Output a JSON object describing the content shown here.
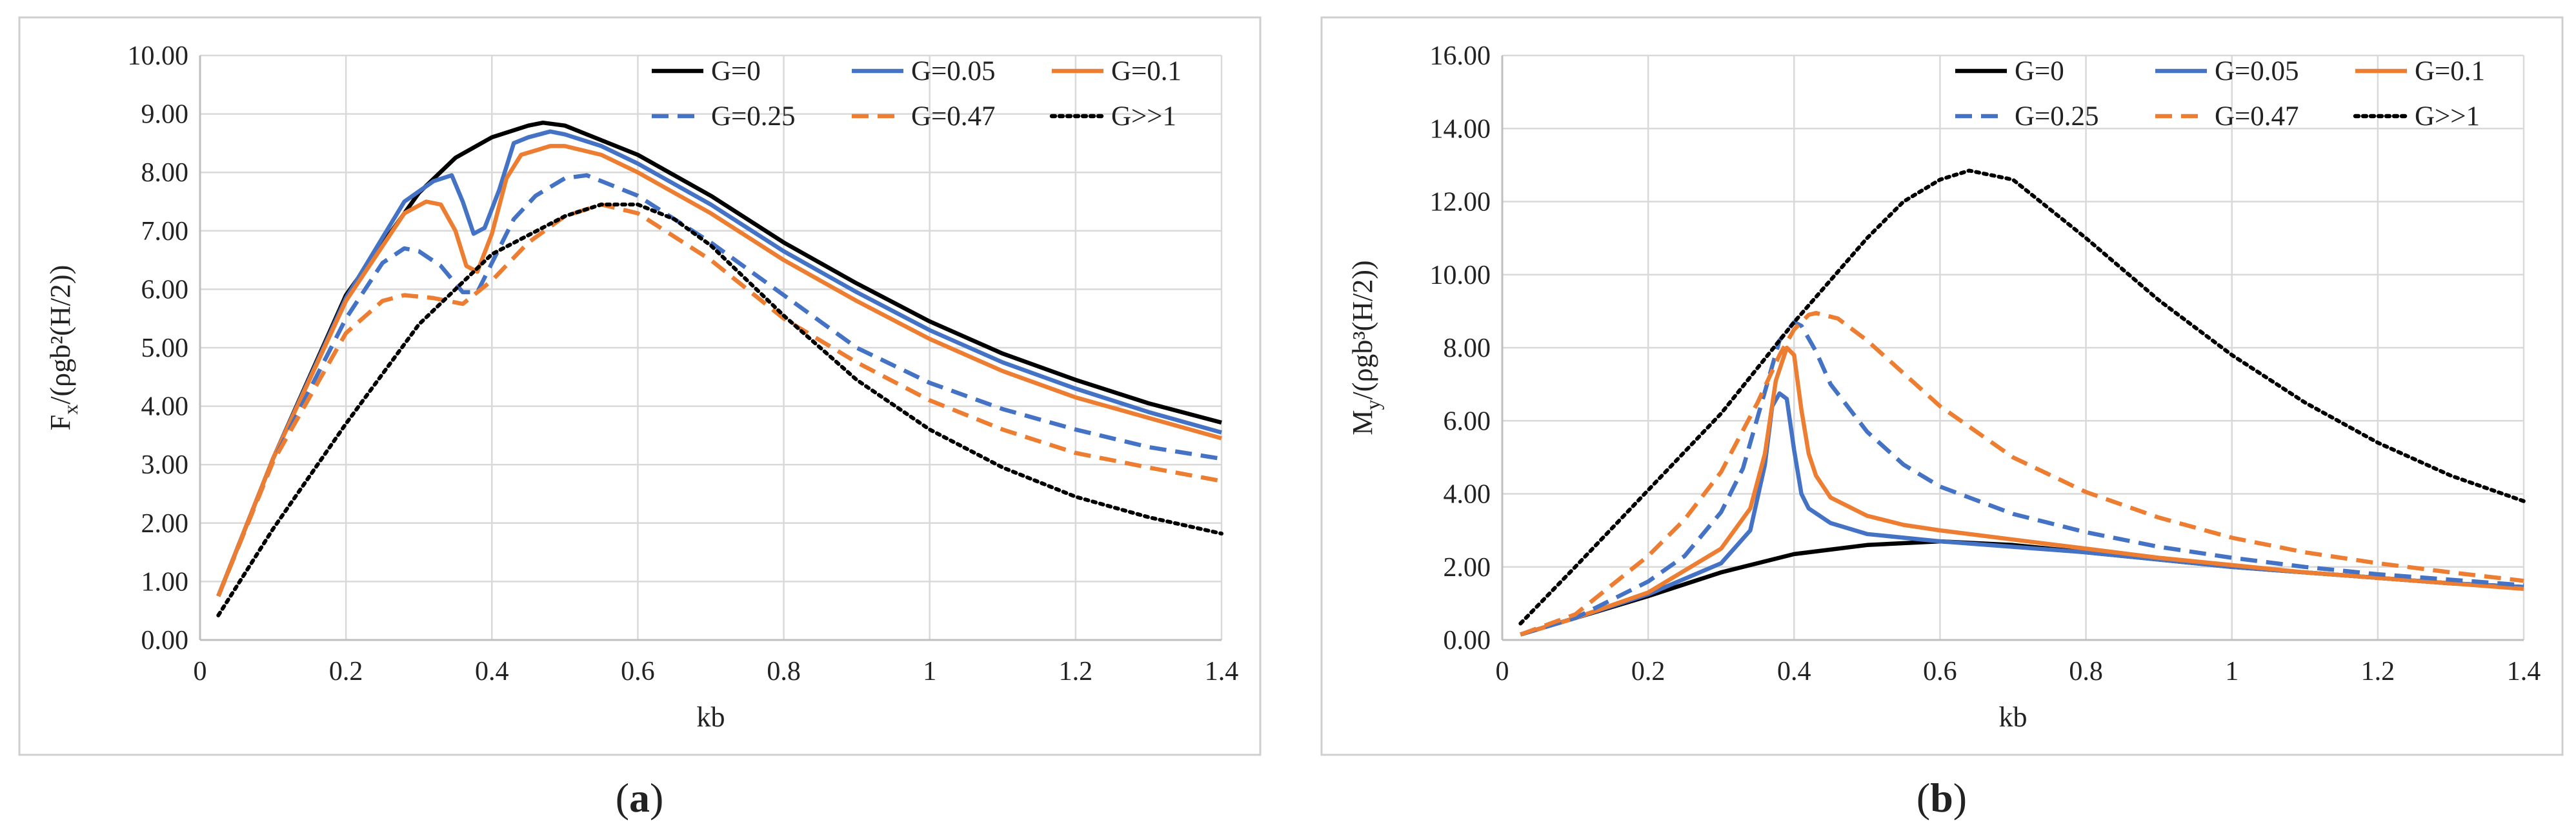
{
  "figure": {
    "panels": [
      {
        "caption_open": "(",
        "caption_letter": "a",
        "caption_close": ")"
      },
      {
        "caption_open": "(",
        "caption_letter": "b",
        "caption_close": ")"
      }
    ]
  },
  "chart_data": [
    {
      "type": "line",
      "title": "",
      "xlabel": "kb",
      "ylabel_parts": [
        "F",
        "x",
        "/(ρgb²(H/2))"
      ],
      "xlim": [
        0,
        1.4
      ],
      "ylim": [
        0,
        10
      ],
      "xticks": [
        0,
        0.2,
        0.4,
        0.6,
        0.8,
        1,
        1.2,
        1.4
      ],
      "xtick_labels": [
        "0",
        "0.2",
        "0.4",
        "0.6",
        "0.8",
        "1",
        "1.2",
        "1.4"
      ],
      "yticks": [
        0,
        1,
        2,
        3,
        4,
        5,
        6,
        7,
        8,
        9,
        10
      ],
      "ytick_labels": [
        "0.00",
        "1.00",
        "2.00",
        "3.00",
        "4.00",
        "5.00",
        "6.00",
        "7.00",
        "8.00",
        "9.00",
        "10.00"
      ],
      "grid": true,
      "legend_position": "top-right",
      "series": [
        {
          "name": "G=0",
          "color": "#000000",
          "dash": "solid",
          "x": [
            0.025,
            0.1,
            0.2,
            0.3,
            0.35,
            0.4,
            0.45,
            0.47,
            0.5,
            0.6,
            0.7,
            0.8,
            0.9,
            1.0,
            1.1,
            1.2,
            1.3,
            1.4
          ],
          "y": [
            0.75,
            3.1,
            5.9,
            7.65,
            8.25,
            8.6,
            8.8,
            8.85,
            8.8,
            8.3,
            7.6,
            6.8,
            6.1,
            5.45,
            4.9,
            4.45,
            4.05,
            3.72
          ]
        },
        {
          "name": "G=0.05",
          "color": "#4472C4",
          "dash": "solid",
          "x": [
            0.025,
            0.1,
            0.2,
            0.28,
            0.32,
            0.345,
            0.36,
            0.375,
            0.39,
            0.41,
            0.43,
            0.45,
            0.48,
            0.5,
            0.55,
            0.6,
            0.7,
            0.8,
            0.9,
            1.0,
            1.1,
            1.2,
            1.3,
            1.4
          ],
          "y": [
            0.75,
            3.1,
            5.85,
            7.5,
            7.85,
            7.95,
            7.5,
            6.95,
            7.05,
            7.7,
            8.5,
            8.6,
            8.7,
            8.65,
            8.45,
            8.15,
            7.45,
            6.65,
            5.95,
            5.3,
            4.75,
            4.3,
            3.9,
            3.55
          ]
        },
        {
          "name": "G=0.1",
          "color": "#ED7D31",
          "dash": "solid",
          "x": [
            0.025,
            0.1,
            0.2,
            0.28,
            0.31,
            0.33,
            0.35,
            0.365,
            0.38,
            0.4,
            0.42,
            0.44,
            0.48,
            0.5,
            0.55,
            0.6,
            0.7,
            0.8,
            0.9,
            1.0,
            1.1,
            1.2,
            1.3,
            1.4
          ],
          "y": [
            0.75,
            3.1,
            5.8,
            7.3,
            7.5,
            7.45,
            7.0,
            6.4,
            6.3,
            6.95,
            7.9,
            8.3,
            8.45,
            8.45,
            8.3,
            8.0,
            7.3,
            6.5,
            5.8,
            5.15,
            4.6,
            4.15,
            3.8,
            3.45
          ]
        },
        {
          "name": "G=0.25",
          "color": "#4472C4",
          "dash": "dashed",
          "x": [
            0.025,
            0.1,
            0.2,
            0.25,
            0.28,
            0.3,
            0.33,
            0.36,
            0.38,
            0.4,
            0.43,
            0.46,
            0.5,
            0.53,
            0.6,
            0.7,
            0.8,
            0.9,
            1.0,
            1.1,
            1.2,
            1.3,
            1.4
          ],
          "y": [
            0.75,
            3.05,
            5.5,
            6.45,
            6.7,
            6.65,
            6.4,
            5.95,
            5.95,
            6.45,
            7.2,
            7.6,
            7.9,
            7.95,
            7.6,
            6.8,
            5.9,
            5.0,
            4.4,
            3.95,
            3.6,
            3.3,
            3.1
          ]
        },
        {
          "name": "G=0.47",
          "color": "#ED7D31",
          "dash": "dashed",
          "x": [
            0.025,
            0.1,
            0.2,
            0.25,
            0.28,
            0.32,
            0.36,
            0.4,
            0.45,
            0.5,
            0.55,
            0.6,
            0.7,
            0.8,
            0.9,
            1.0,
            1.1,
            1.2,
            1.3,
            1.4
          ],
          "y": [
            0.75,
            3.05,
            5.25,
            5.8,
            5.9,
            5.85,
            5.75,
            6.15,
            6.8,
            7.25,
            7.45,
            7.3,
            6.5,
            5.5,
            4.75,
            4.1,
            3.6,
            3.2,
            2.95,
            2.72
          ]
        },
        {
          "name": "G>>1",
          "color": "#000000",
          "dash": "dotted",
          "x": [
            0.025,
            0.1,
            0.2,
            0.3,
            0.4,
            0.5,
            0.55,
            0.6,
            0.65,
            0.7,
            0.8,
            0.9,
            1.0,
            1.1,
            1.2,
            1.3,
            1.4
          ],
          "y": [
            0.42,
            1.9,
            3.7,
            5.4,
            6.6,
            7.25,
            7.45,
            7.45,
            7.2,
            6.75,
            5.55,
            4.45,
            3.6,
            2.95,
            2.45,
            2.1,
            1.82
          ]
        }
      ]
    },
    {
      "type": "line",
      "title": "",
      "xlabel": "kb",
      "ylabel_parts": [
        "M",
        "y",
        "/(ρgb³(H/2))"
      ],
      "xlim": [
        0,
        1.4
      ],
      "ylim": [
        0,
        16
      ],
      "xticks": [
        0,
        0.2,
        0.4,
        0.6,
        0.8,
        1,
        1.2,
        1.4
      ],
      "xtick_labels": [
        "0",
        "0.2",
        "0.4",
        "0.6",
        "0.8",
        "1",
        "1.2",
        "1.4"
      ],
      "yticks": [
        0,
        2,
        4,
        6,
        8,
        10,
        12,
        14,
        16
      ],
      "ytick_labels": [
        "0.00",
        "2.00",
        "4.00",
        "6.00",
        "8.00",
        "10.00",
        "12.00",
        "14.00",
        "16.00"
      ],
      "grid": true,
      "legend_position": "top-right",
      "series": [
        {
          "name": "G=0",
          "color": "#000000",
          "dash": "solid",
          "x": [
            0.025,
            0.1,
            0.2,
            0.3,
            0.4,
            0.5,
            0.6,
            0.7,
            0.8,
            0.9,
            1.0,
            1.1,
            1.2,
            1.3,
            1.4
          ],
          "y": [
            0.15,
            0.6,
            1.2,
            1.85,
            2.35,
            2.6,
            2.7,
            2.6,
            2.4,
            2.2,
            2.0,
            1.85,
            1.7,
            1.55,
            1.45
          ]
        },
        {
          "name": "G=0.05",
          "color": "#4472C4",
          "dash": "solid",
          "x": [
            0.025,
            0.1,
            0.2,
            0.3,
            0.34,
            0.36,
            0.37,
            0.38,
            0.39,
            0.4,
            0.41,
            0.42,
            0.45,
            0.5,
            0.6,
            0.7,
            0.8,
            0.9,
            1.0,
            1.1,
            1.2,
            1.3,
            1.4
          ],
          "y": [
            0.15,
            0.6,
            1.25,
            2.1,
            3.0,
            4.8,
            6.4,
            6.75,
            6.6,
            5.2,
            4.0,
            3.6,
            3.2,
            2.9,
            2.7,
            2.55,
            2.4,
            2.2,
            2.0,
            1.85,
            1.7,
            1.55,
            1.45
          ]
        },
        {
          "name": "G=0.1",
          "color": "#ED7D31",
          "dash": "solid",
          "x": [
            0.025,
            0.1,
            0.2,
            0.3,
            0.34,
            0.36,
            0.375,
            0.39,
            0.4,
            0.41,
            0.42,
            0.43,
            0.45,
            0.5,
            0.55,
            0.6,
            0.7,
            0.8,
            0.9,
            1.0,
            1.1,
            1.2,
            1.3,
            1.4
          ],
          "y": [
            0.15,
            0.6,
            1.3,
            2.5,
            3.6,
            5.1,
            7.1,
            8.0,
            7.8,
            6.3,
            5.1,
            4.5,
            3.9,
            3.4,
            3.15,
            3.0,
            2.75,
            2.5,
            2.25,
            2.05,
            1.85,
            1.7,
            1.55,
            1.4
          ]
        },
        {
          "name": "G=0.25",
          "color": "#4472C4",
          "dash": "dashed",
          "x": [
            0.025,
            0.1,
            0.2,
            0.25,
            0.3,
            0.33,
            0.36,
            0.38,
            0.4,
            0.41,
            0.43,
            0.45,
            0.5,
            0.55,
            0.6,
            0.7,
            0.8,
            0.9,
            1.0,
            1.1,
            1.2,
            1.3,
            1.4
          ],
          "y": [
            0.15,
            0.6,
            1.6,
            2.3,
            3.5,
            4.7,
            6.8,
            8.2,
            8.7,
            8.6,
            7.9,
            7.0,
            5.7,
            4.8,
            4.2,
            3.45,
            2.95,
            2.55,
            2.25,
            2.0,
            1.8,
            1.65,
            1.5
          ]
        },
        {
          "name": "G=0.47",
          "color": "#ED7D31",
          "dash": "dashed",
          "x": [
            0.025,
            0.1,
            0.2,
            0.25,
            0.3,
            0.35,
            0.38,
            0.4,
            0.42,
            0.43,
            0.46,
            0.5,
            0.55,
            0.6,
            0.7,
            0.8,
            0.9,
            1.0,
            1.1,
            1.2,
            1.3,
            1.4
          ],
          "y": [
            0.15,
            0.7,
            2.3,
            3.3,
            4.6,
            6.5,
            7.8,
            8.5,
            8.9,
            8.95,
            8.8,
            8.2,
            7.3,
            6.4,
            5.0,
            4.05,
            3.35,
            2.8,
            2.4,
            2.1,
            1.85,
            1.62
          ]
        },
        {
          "name": "G>>1",
          "color": "#000000",
          "dash": "dotted",
          "x": [
            0.025,
            0.1,
            0.2,
            0.3,
            0.4,
            0.5,
            0.55,
            0.6,
            0.64,
            0.7,
            0.8,
            0.9,
            1.0,
            1.1,
            1.2,
            1.3,
            1.4
          ],
          "y": [
            0.45,
            2.0,
            4.1,
            6.2,
            8.7,
            11.0,
            12.0,
            12.6,
            12.85,
            12.6,
            11.0,
            9.3,
            7.8,
            6.5,
            5.4,
            4.5,
            3.8
          ]
        }
      ]
    }
  ]
}
